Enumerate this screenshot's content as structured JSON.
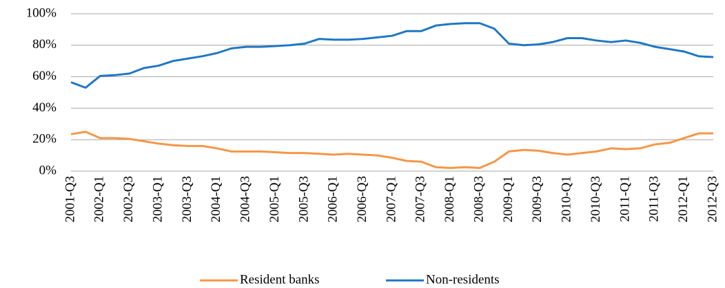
{
  "chart_data": {
    "type": "line",
    "categories": [
      "2001-Q3",
      null,
      "2002-Q1",
      null,
      "2002-Q3",
      null,
      "2003-Q1",
      null,
      "2003-Q3",
      null,
      "2004-Q1",
      null,
      "2004-Q3",
      null,
      "2005-Q1",
      null,
      "2005-Q3",
      null,
      "2006-Q1",
      null,
      "2006-Q3",
      null,
      "2007-Q1",
      null,
      "2007-Q3",
      null,
      "2008-Q1",
      null,
      "2008-Q3",
      null,
      "2009-Q1",
      null,
      "2009-Q3",
      null,
      "2010-Q1",
      null,
      "2010-Q3",
      null,
      "2011-Q1",
      null,
      "2011-Q3",
      null,
      "2012-Q1",
      null,
      "2012-Q3"
    ],
    "series": [
      {
        "name": "Resident banks",
        "color": "#f79646",
        "values": [
          23.5,
          25,
          21,
          21,
          20.5,
          19,
          17.5,
          16.5,
          16,
          16,
          14.5,
          12.5,
          12.5,
          12.5,
          12,
          11.5,
          11.5,
          11,
          10.5,
          11,
          10.5,
          10,
          8.5,
          6.5,
          6,
          2.5,
          2,
          2.5,
          2,
          6,
          12.5,
          13.5,
          13,
          11.5,
          10.5,
          11.5,
          12.5,
          14.5,
          14,
          14.5,
          17,
          18,
          21,
          24,
          24
        ]
      },
      {
        "name": "Non-residents",
        "color": "#1f77c4",
        "values": [
          56.5,
          53,
          60.5,
          61,
          62,
          65.5,
          67,
          70,
          71.5,
          73,
          75,
          78,
          79,
          79,
          79.5,
          80,
          81,
          84,
          83.5,
          83.5,
          84,
          85,
          86,
          89,
          89,
          92.5,
          93.5,
          94,
          94,
          90.5,
          81,
          80,
          80.5,
          82,
          84.5,
          84.5,
          83,
          82,
          83,
          81.5,
          79,
          77.5,
          76,
          73,
          72.5
        ]
      }
    ],
    "ylim": [
      0,
      100
    ],
    "yticks": [
      {
        "value": 0,
        "label": "0%"
      },
      {
        "value": 20,
        "label": "20%"
      },
      {
        "value": 40,
        "label": "40%"
      },
      {
        "value": 60,
        "label": "60%"
      },
      {
        "value": 80,
        "label": "80%"
      },
      {
        "value": 100,
        "label": "100%"
      }
    ],
    "grid": true,
    "legend": "bottom"
  }
}
